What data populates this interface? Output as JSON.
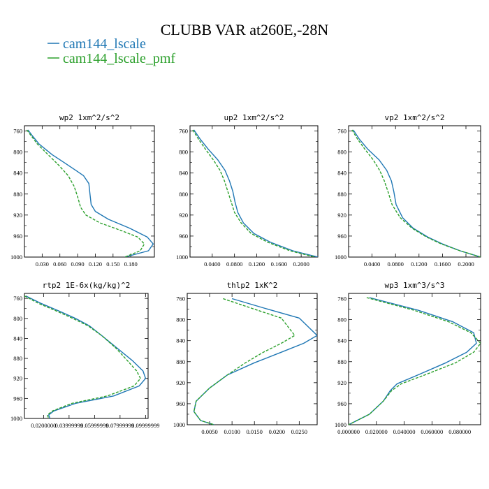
{
  "figure": {
    "title": "CLUBB VAR at260E,-28N",
    "legend": [
      {
        "label": "cam144_lscale",
        "color": "#1f77b4"
      },
      {
        "label": "cam144_lscale_pmf",
        "color": "#2ca02c"
      }
    ]
  },
  "chart_data": [
    {
      "type": "line",
      "title": "wp2  1xm^2/s^2",
      "xlim": [
        0.0,
        0.22
      ],
      "ylim": [
        1000,
        750
      ],
      "xticks": [
        0.03,
        0.06,
        0.09,
        0.12,
        0.15,
        0.18
      ],
      "xtick_labels": [
        "0.030",
        "0.060",
        "0.090",
        "0.120",
        "0.150",
        "0.180"
      ],
      "yticks": [
        760,
        800,
        840,
        880,
        920,
        960,
        1000
      ],
      "series": [
        {
          "name": "cam144_lscale",
          "color": "#1f77b4",
          "dashed": false,
          "x": [
            0.006,
            0.014,
            0.025,
            0.047,
            0.067,
            0.087,
            0.1,
            0.109,
            0.111,
            0.113,
            0.12,
            0.142,
            0.178,
            0.208,
            0.218,
            0.21,
            0.17
          ],
          "y": [
            758,
            770,
            785,
            805,
            820,
            835,
            845,
            860,
            880,
            900,
            913,
            928,
            945,
            962,
            975,
            988,
            1000
          ]
        },
        {
          "name": "cam144_lscale_pmf",
          "color": "#2ca02c",
          "dashed": true,
          "x": [
            0.004,
            0.012,
            0.022,
            0.04,
            0.058,
            0.074,
            0.084,
            0.09,
            0.095,
            0.104,
            0.128,
            0.165,
            0.192,
            0.203,
            0.196,
            0.17
          ],
          "y": [
            758,
            770,
            785,
            805,
            825,
            845,
            865,
            885,
            905,
            920,
            935,
            950,
            962,
            975,
            988,
            1000
          ]
        }
      ]
    },
    {
      "type": "line",
      "title": "up2  1xm^2/s^2",
      "xlim": [
        0.0,
        0.23
      ],
      "ylim": [
        1000,
        750
      ],
      "xticks": [
        0.04,
        0.08,
        0.12,
        0.16,
        0.2
      ],
      "xtick_labels": [
        "0.0400",
        "0.0800",
        "0.1200",
        "0.1600",
        "0.2000"
      ],
      "yticks": [
        760,
        800,
        840,
        880,
        920,
        960,
        1000
      ],
      "series": [
        {
          "name": "cam144_lscale",
          "color": "#1f77b4",
          "dashed": false,
          "x": [
            0.007,
            0.018,
            0.033,
            0.05,
            0.063,
            0.071,
            0.077,
            0.081,
            0.086,
            0.096,
            0.115,
            0.145,
            0.185,
            0.23
          ],
          "y": [
            758,
            775,
            795,
            815,
            835,
            855,
            875,
            895,
            915,
            935,
            955,
            972,
            988,
            1000
          ]
        },
        {
          "name": "cam144_lscale_pmf",
          "color": "#2ca02c",
          "dashed": true,
          "x": [
            0.005,
            0.015,
            0.028,
            0.042,
            0.054,
            0.062,
            0.068,
            0.074,
            0.08,
            0.092,
            0.11,
            0.14,
            0.18,
            0.225
          ],
          "y": [
            758,
            775,
            795,
            815,
            835,
            855,
            875,
            895,
            915,
            935,
            955,
            972,
            988,
            1000
          ]
        }
      ]
    },
    {
      "type": "line",
      "title": "vp2  1xm^2/s^2",
      "xlim": [
        0.0,
        0.225
      ],
      "ylim": [
        1000,
        750
      ],
      "xticks": [
        0.04,
        0.08,
        0.12,
        0.16,
        0.2
      ],
      "xtick_labels": [
        "0.0400",
        "0.0800",
        "0.1200",
        "0.1600",
        "0.2000"
      ],
      "yticks": [
        760,
        800,
        840,
        880,
        920,
        960,
        1000
      ],
      "series": [
        {
          "name": "cam144_lscale",
          "color": "#1f77b4",
          "dashed": false,
          "x": [
            0.008,
            0.018,
            0.033,
            0.052,
            0.065,
            0.073,
            0.077,
            0.081,
            0.092,
            0.11,
            0.135,
            0.16,
            0.19,
            0.225
          ],
          "y": [
            758,
            775,
            795,
            815,
            835,
            855,
            875,
            900,
            925,
            945,
            962,
            975,
            988,
            1000
          ]
        },
        {
          "name": "cam144_lscale_pmf",
          "color": "#2ca02c",
          "dashed": true,
          "x": [
            0.006,
            0.015,
            0.028,
            0.042,
            0.053,
            0.061,
            0.067,
            0.074,
            0.088,
            0.108,
            0.133,
            0.158,
            0.19,
            0.225
          ],
          "y": [
            758,
            775,
            795,
            815,
            835,
            855,
            875,
            900,
            925,
            945,
            962,
            975,
            988,
            1000
          ]
        }
      ]
    },
    {
      "type": "line",
      "title": "rtp2  1E-6x(kg/kg)^2",
      "xlim": [
        0.005,
        0.102
      ],
      "ylim": [
        1000,
        750
      ],
      "xticks": [
        0.02,
        0.04,
        0.06,
        0.08,
        0.1
      ],
      "xtick_labels": [
        "0.0200000",
        "0.03999999",
        "0.05999999",
        "0.07999999",
        "0.09999999"
      ],
      "yticks": [
        760,
        800,
        840,
        880,
        920,
        960,
        1000
      ],
      "series": [
        {
          "name": "cam144_lscale",
          "color": "#1f77b4",
          "dashed": false,
          "x": [
            0.006,
            0.018,
            0.032,
            0.045,
            0.056,
            0.066,
            0.078,
            0.09,
            0.098,
            0.1,
            0.095,
            0.075,
            0.045,
            0.028,
            0.024,
            0.025
          ],
          "y": [
            755,
            770,
            785,
            800,
            815,
            835,
            860,
            885,
            905,
            920,
            935,
            955,
            970,
            985,
            993,
            1000
          ]
        },
        {
          "name": "cam144_lscale_pmf",
          "color": "#2ca02c",
          "dashed": true,
          "x": [
            0.005,
            0.016,
            0.03,
            0.043,
            0.055,
            0.066,
            0.077,
            0.086,
            0.093,
            0.096,
            0.091,
            0.07,
            0.042,
            0.027,
            0.023,
            0.024
          ],
          "y": [
            755,
            770,
            785,
            800,
            815,
            835,
            860,
            885,
            905,
            920,
            935,
            955,
            970,
            985,
            993,
            1000
          ]
        }
      ]
    },
    {
      "type": "line",
      "title": "thlp2  1xK^2",
      "xlim": [
        0.0,
        0.029
      ],
      "ylim": [
        1000,
        750
      ],
      "xticks": [
        0.005,
        0.01,
        0.015,
        0.02,
        0.025
      ],
      "xtick_labels": [
        "0.0050",
        "0.0100",
        "0.0150",
        "0.0200",
        "0.0250"
      ],
      "yticks": [
        760,
        800,
        840,
        880,
        920,
        960,
        1000
      ],
      "series": [
        {
          "name": "cam144_lscale",
          "color": "#1f77b4",
          "dashed": false,
          "x": [
            0.01,
            0.018,
            0.025,
            0.029,
            0.026,
            0.021,
            0.015,
            0.009,
            0.005,
            0.002,
            0.0015,
            0.003,
            0.006
          ],
          "y": [
            760,
            780,
            797,
            830,
            845,
            862,
            882,
            905,
            930,
            955,
            975,
            992,
            1000
          ]
        },
        {
          "name": "cam144_lscale_pmf",
          "color": "#2ca02c",
          "dashed": true,
          "x": [
            0.008,
            0.015,
            0.021,
            0.024,
            0.021,
            0.017,
            0.013,
            0.009,
            0.005,
            0.002,
            0.0015,
            0.003,
            0.006
          ],
          "y": [
            760,
            780,
            797,
            830,
            845,
            862,
            882,
            905,
            930,
            955,
            975,
            992,
            1000
          ]
        }
      ]
    },
    {
      "type": "line",
      "title": "wp3  1xm^3/s^3",
      "xlim": [
        0.0,
        0.095
      ],
      "ylim": [
        1000,
        750
      ],
      "xticks": [
        0.0,
        0.02,
        0.04,
        0.06,
        0.08
      ],
      "xtick_labels": [
        "0.000000",
        "0.020000",
        "0.040000",
        "0.060000",
        "0.080000"
      ],
      "yticks": [
        760,
        800,
        840,
        880,
        920,
        960,
        1000
      ],
      "series": [
        {
          "name": "cam144_lscale",
          "color": "#1f77b4",
          "dashed": false,
          "x": [
            0.015,
            0.05,
            0.075,
            0.09,
            0.092,
            0.085,
            0.07,
            0.05,
            0.035,
            0.03,
            0.025,
            0.015,
            0.0
          ],
          "y": [
            758,
            782,
            804,
            825,
            845,
            862,
            882,
            905,
            922,
            935,
            955,
            980,
            1000
          ]
        },
        {
          "name": "cam144_lscale_pmf",
          "color": "#2ca02c",
          "dashed": true,
          "x": [
            0.013,
            0.047,
            0.072,
            0.088,
            0.095,
            0.09,
            0.077,
            0.055,
            0.038,
            0.031,
            0.025,
            0.015,
            0.0
          ],
          "y": [
            758,
            782,
            804,
            825,
            845,
            862,
            882,
            905,
            922,
            935,
            955,
            980,
            1000
          ]
        }
      ]
    }
  ]
}
